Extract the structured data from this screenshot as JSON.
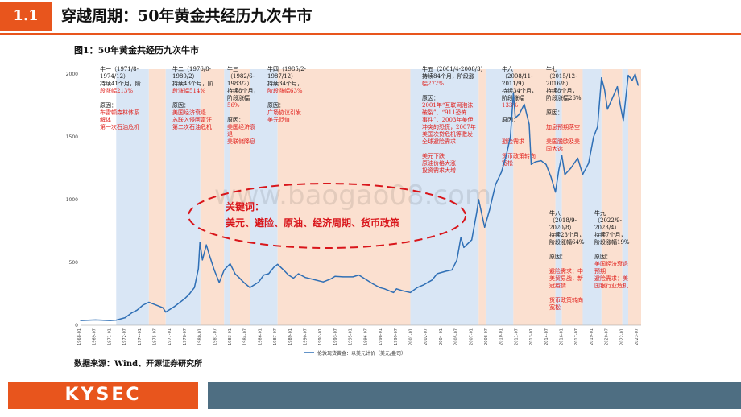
{
  "header": {
    "section_number": "1.1",
    "title": "穿越周期：50年黄金共经历九次牛市"
  },
  "figure_title": "图1：50年黄金共经历九次牛市",
  "source": "数据来源：Wind、开源证券研究所",
  "logo_text": "KYSEC",
  "watermark": "www.baogao08.com",
  "keyword_box": {
    "line1": "关键词：",
    "line2": "美元、避险、原油、经济周期、货币政策"
  },
  "colors": {
    "accent": "#e8551d",
    "footer": "#4e6e82",
    "line": "#2f6fb5",
    "bull_shade": "#d9e6f5",
    "bear_shade": "#fbe0d0",
    "annotation_red": "#e0201c",
    "ellipse": "#d9161b"
  },
  "annotations": [
    {
      "id": "bull1",
      "lines": [
        [
          "牛一（1971/8-",
          "k"
        ],
        [
          "1974/12）",
          "k"
        ],
        [
          "持续41个月，阶",
          "k"
        ],
        [
          "段涨幅213%",
          "r"
        ],
        [
          "",
          "k"
        ],
        [
          "原因：",
          "k"
        ],
        [
          "布雷顿森林体系",
          "r"
        ],
        [
          "解体",
          "r"
        ],
        [
          "第一次石油危机",
          "r"
        ]
      ]
    },
    {
      "id": "bull2",
      "lines": [
        [
          "牛二（1976/8-",
          "k"
        ],
        [
          "1980/2）",
          "k"
        ],
        [
          "持续43个月，阶",
          "k"
        ],
        [
          "段涨幅514%",
          "r"
        ],
        [
          "",
          "k"
        ],
        [
          "原因：",
          "k"
        ],
        [
          "美国经济衰退",
          "r"
        ],
        [
          "苏联入侵阿富汗",
          "r"
        ],
        [
          "第二次石油危机",
          "r"
        ]
      ]
    },
    {
      "id": "bull3",
      "lines": [
        [
          "牛三",
          "k"
        ],
        [
          "（1982/6-",
          "k"
        ],
        [
          "1983/2）",
          "k"
        ],
        [
          "持续8个月，",
          "k"
        ],
        [
          "阶段涨幅",
          "k"
        ],
        [
          "56%",
          "r"
        ],
        [
          "",
          "k"
        ],
        [
          "原因：",
          "k"
        ],
        [
          "美国经济衰",
          "r"
        ],
        [
          "退",
          "r"
        ],
        [
          "美联储降息",
          "r"
        ]
      ]
    },
    {
      "id": "bull4",
      "lines": [
        [
          "牛四（1985/2-",
          "k"
        ],
        [
          "1987/12）",
          "k"
        ],
        [
          "持续34个月，",
          "k"
        ],
        [
          "阶段涨幅63%",
          "r"
        ],
        [
          "",
          "k"
        ],
        [
          "原因：",
          "k"
        ],
        [
          "广场协议引发",
          "r"
        ],
        [
          "美元贬值",
          "r"
        ]
      ]
    },
    {
      "id": "bull5",
      "lines": [
        [
          "牛五（2001/4-2008/3）",
          "k"
        ],
        [
          "持续84个月，阶段涨",
          "k"
        ],
        [
          "幅272%",
          "r"
        ],
        [
          "",
          "k"
        ],
        [
          "原因：",
          "k"
        ],
        [
          "2001年“互联网泡沫",
          "r"
        ],
        [
          "破裂”、“911恐怖",
          "r"
        ],
        [
          "事件”、2003年美伊",
          "r"
        ],
        [
          "冲突的恐慌，2007年",
          "r"
        ],
        [
          "美国次贷危机等激发",
          "r"
        ],
        [
          "全球避险需求",
          "r"
        ],
        [
          "",
          "k"
        ],
        [
          "美元下跌",
          "r"
        ],
        [
          "原油价格大涨",
          "r"
        ],
        [
          "投资需求大增",
          "r"
        ]
      ]
    },
    {
      "id": "bull6",
      "lines": [
        [
          "牛六",
          "k"
        ],
        [
          "（2008/11-",
          "k"
        ],
        [
          "2011/9）",
          "k"
        ],
        [
          "持续34个月，",
          "k"
        ],
        [
          "阶段涨幅",
          "k"
        ],
        [
          "133%",
          "r"
        ],
        [
          "",
          "k"
        ],
        [
          "原因：",
          "k"
        ],
        [
          "",
          "k"
        ],
        [
          "",
          "k"
        ],
        [
          "避险需求",
          "r"
        ],
        [
          "",
          "k"
        ],
        [
          "货币政策转向",
          "r"
        ],
        [
          "宽松",
          "r"
        ]
      ]
    },
    {
      "id": "bull7",
      "lines": [
        [
          "牛七",
          "k"
        ],
        [
          "（2015/12-",
          "k"
        ],
        [
          "2016/8）",
          "k"
        ],
        [
          "持续8个月，",
          "k"
        ],
        [
          "阶段涨幅26%",
          "k"
        ],
        [
          "",
          "k"
        ],
        [
          "原因：",
          "k"
        ],
        [
          "",
          "k"
        ],
        [
          "加息预期落空",
          "r"
        ],
        [
          "",
          "k"
        ],
        [
          "美国脱欧及美",
          "r"
        ],
        [
          "国大选",
          "r"
        ]
      ]
    },
    {
      "id": "bull8",
      "lines": [
        [
          "牛八",
          "k"
        ],
        [
          "（2018/9-",
          "k"
        ],
        [
          "2020/8）",
          "k"
        ],
        [
          "持续23个月，",
          "k"
        ],
        [
          "阶段涨幅64%",
          "k"
        ],
        [
          "",
          "k"
        ],
        [
          "原因：",
          "k"
        ],
        [
          "",
          "k"
        ],
        [
          "避险需求：中",
          "r"
        ],
        [
          "美贸易战，新",
          "r"
        ],
        [
          "冠疫情",
          "r"
        ],
        [
          "",
          "k"
        ],
        [
          "货币政策转向",
          "r"
        ],
        [
          "宽松",
          "r"
        ]
      ]
    },
    {
      "id": "bull9",
      "lines": [
        [
          "牛九",
          "k"
        ],
        [
          "（2022/9-",
          "k"
        ],
        [
          "2023/4）",
          "k"
        ],
        [
          "持续7个月，",
          "k"
        ],
        [
          "阶段涨幅19%",
          "k"
        ],
        [
          "",
          "k"
        ],
        [
          "原因：",
          "k"
        ],
        [
          "美国经济衰退",
          "r"
        ],
        [
          "预期",
          "r"
        ],
        [
          "避险需求：美",
          "r"
        ],
        [
          "国银行业危机",
          "r"
        ]
      ]
    }
  ],
  "chart_data": {
    "type": "line",
    "xlabel": "",
    "ylabel": "",
    "ylim": [
      0,
      2000
    ],
    "yticks": [
      0,
      500,
      1000,
      1500,
      2000
    ],
    "grid": false,
    "legend_position": "bottom",
    "x_tick_labels": [
      "1968-01",
      "1969-07",
      "1971-01",
      "1972-07",
      "1974-01",
      "1975-07",
      "1977-01",
      "1978-07",
      "1980-01",
      "1981-07",
      "1983-01",
      "1984-07",
      "1986-01",
      "1987-07",
      "1989-01",
      "1990-07",
      "1992-01",
      "1993-07",
      "1995-01",
      "1996-07",
      "1998-01",
      "1999-07",
      "2001-01",
      "2002-07",
      "2004-01",
      "2005-07",
      "2007-01",
      "2008-07",
      "2010-01",
      "2011-07",
      "2013-01",
      "2014-07",
      "2016-01",
      "2017-07",
      "2019-01",
      "2020-07",
      "2022-01",
      "2023-07"
    ],
    "series": [
      {
        "name": "伦敦现货黄金：以美元计价（美元/盎司）",
        "x": [
          1968.0,
          1969.5,
          1971.0,
          1971.6,
          1972.5,
          1973.2,
          1973.7,
          1974.3,
          1974.9,
          1975.5,
          1976.3,
          1976.6,
          1977.5,
          1978.5,
          1978.9,
          1979.5,
          1979.9,
          1980.05,
          1980.3,
          1980.7,
          1981.0,
          1981.5,
          1982.0,
          1982.5,
          1983.1,
          1983.6,
          1984.0,
          1984.5,
          1985.1,
          1985.5,
          1986.0,
          1986.5,
          1987.0,
          1987.5,
          1987.9,
          1988.5,
          1989.0,
          1989.5,
          1990.0,
          1990.7,
          1991.5,
          1992.5,
          1993.3,
          1993.7,
          1994.5,
          1995.5,
          1996.1,
          1996.7,
          1997.5,
          1998.2,
          1998.7,
          1999.6,
          1999.9,
          2000.5,
          2001.3,
          2002.0,
          2002.6,
          2003.5,
          2004.0,
          2004.9,
          2005.5,
          2006.0,
          2006.4,
          2006.7,
          2007.5,
          2008.0,
          2008.2,
          2008.8,
          2009.3,
          2009.9,
          2010.5,
          2011.0,
          2011.4,
          2011.7,
          2011.9,
          2012.3,
          2012.8,
          2013.3,
          2013.5,
          2013.9,
          2014.5,
          2015.0,
          2015.5,
          2015.95,
          2016.3,
          2016.6,
          2016.9,
          2017.5,
          2018.2,
          2018.7,
          2019.3,
          2019.8,
          2020.2,
          2020.6,
          2020.9,
          2021.2,
          2021.6,
          2022.2,
          2022.5,
          2022.8,
          2023.3,
          2023.7,
          2024.0,
          2024.3
        ],
        "values": [
          38,
          42,
          38,
          41,
          60,
          100,
          120,
          160,
          183,
          165,
          140,
          105,
          150,
          210,
          240,
          300,
          450,
          660,
          520,
          640,
          560,
          440,
          340,
          440,
          490,
          410,
          380,
          340,
          300,
          320,
          345,
          400,
          410,
          460,
          485,
          440,
          400,
          375,
          410,
          380,
          365,
          345,
          370,
          390,
          385,
          385,
          400,
          370,
          330,
          300,
          290,
          260,
          290,
          275,
          260,
          300,
          320,
          360,
          410,
          430,
          440,
          520,
          700,
          620,
          680,
          900,
          1000,
          780,
          920,
          1120,
          1220,
          1360,
          1500,
          1850,
          1650,
          1680,
          1760,
          1600,
          1280,
          1300,
          1310,
          1280,
          1180,
          1060,
          1240,
          1350,
          1200,
          1250,
          1330,
          1200,
          1290,
          1500,
          1580,
          1970,
          1880,
          1720,
          1790,
          1900,
          1750,
          1630,
          1990,
          1950,
          2000,
          1910
        ]
      }
    ]
  }
}
